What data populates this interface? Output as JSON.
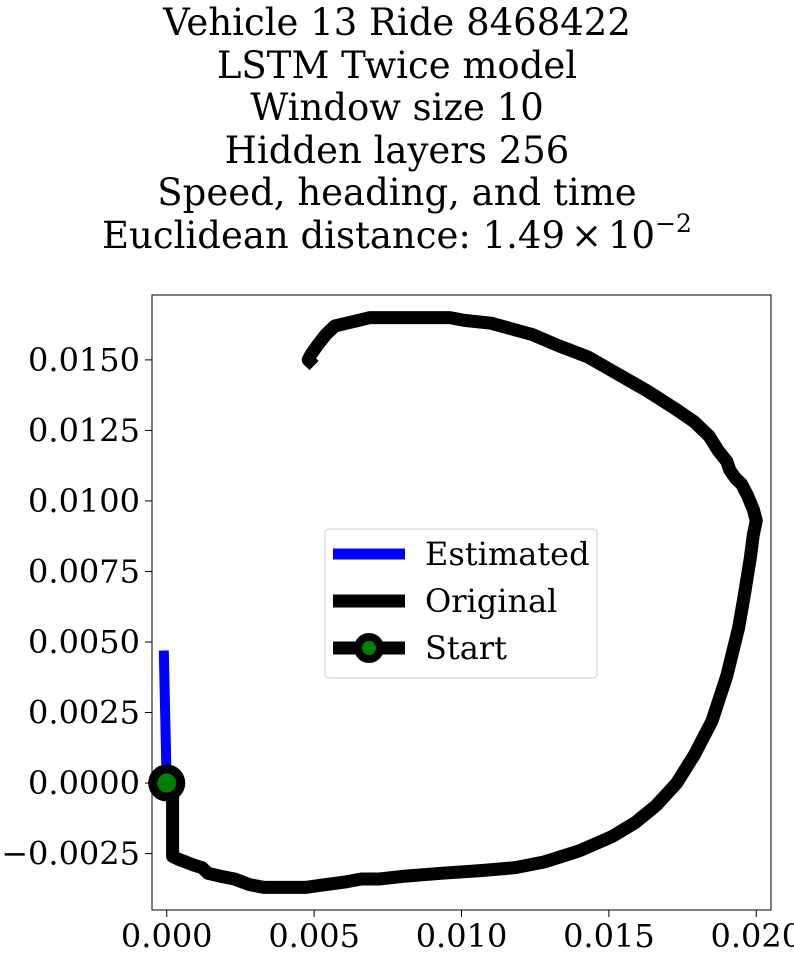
{
  "title_lines": [
    "Vehicle 13 Ride 8468422",
    "LSTM Twice model",
    "Window size 10",
    "Hidden layers 256",
    "Speed, heading, and time"
  ],
  "title_distance_prefix": "Euclidean distance: 1.49",
  "title_distance_times": "×",
  "title_distance_base": "10",
  "title_distance_exponent": "−2",
  "chart_data": {
    "type": "line",
    "xlim": [
      -0.0005,
      0.0205
    ],
    "ylim": [
      -0.0045,
      0.0173
    ],
    "xticks": [
      0.0,
      0.005,
      0.01,
      0.015,
      0.02
    ],
    "xtick_labels": [
      "0.000",
      "0.005",
      "0.010",
      "0.015",
      "0.020"
    ],
    "yticks": [
      -0.0025,
      0.0,
      0.0025,
      0.005,
      0.0075,
      0.01,
      0.0125,
      0.015
    ],
    "ytick_labels": [
      "−0.0025",
      "0.0000",
      "0.0025",
      "0.0050",
      "0.0075",
      "0.0100",
      "0.0125",
      "0.0150"
    ],
    "grid": false,
    "legend_position": "center",
    "series": [
      {
        "name": "Estimated",
        "color": "#0000ff",
        "x": [
          0.0,
          -0.0001
        ],
        "y": [
          0.0,
          0.0047
        ]
      },
      {
        "name": "Original",
        "color": "#000000",
        "x": [
          0.0,
          0.0002,
          0.0002,
          0.0004,
          0.0009,
          0.0012,
          0.0014,
          0.0018,
          0.0023,
          0.0028,
          0.0033,
          0.004,
          0.0047,
          0.0054,
          0.0061,
          0.0066,
          0.0072,
          0.0081,
          0.0093,
          0.0107,
          0.0118,
          0.0128,
          0.014,
          0.0151,
          0.0159,
          0.0166,
          0.0173,
          0.0179,
          0.0185,
          0.019,
          0.0194,
          0.0196,
          0.0198,
          0.0199,
          0.02,
          0.0199,
          0.0197,
          0.0196,
          0.0195,
          0.0193,
          0.0191,
          0.019,
          0.0187,
          0.0184,
          0.0179,
          0.0172,
          0.0163,
          0.0153,
          0.0143,
          0.0133,
          0.0124,
          0.0117,
          0.011,
          0.0101,
          0.0096,
          0.0092,
          0.0087,
          0.008,
          0.0076,
          0.0074,
          0.0071,
          0.0069,
          0.0065,
          0.0061,
          0.0057,
          0.0054,
          0.0051,
          0.0049,
          0.0048,
          0.0049,
          0.005
        ],
        "y": [
          0.0,
          -0.0003,
          -0.0026,
          -0.0027,
          -0.0029,
          -0.003,
          -0.0032,
          -0.0033,
          -0.0034,
          -0.0036,
          -0.0037,
          -0.0037,
          -0.0037,
          -0.0036,
          -0.0035,
          -0.0034,
          -0.0034,
          -0.0033,
          -0.0032,
          -0.0031,
          -0.003,
          -0.0028,
          -0.0024,
          -0.0019,
          -0.0014,
          -0.0008,
          0.0,
          0.001,
          0.0022,
          0.0038,
          0.0055,
          0.0067,
          0.008,
          0.0088,
          0.0093,
          0.0097,
          0.0102,
          0.0104,
          0.0106,
          0.0108,
          0.0111,
          0.0114,
          0.0118,
          0.0123,
          0.0128,
          0.0133,
          0.0139,
          0.0145,
          0.0151,
          0.0155,
          0.0159,
          0.0161,
          0.0163,
          0.0164,
          0.0165,
          0.0165,
          0.0165,
          0.0165,
          0.0165,
          0.0165,
          0.0165,
          0.0165,
          0.0164,
          0.0163,
          0.0162,
          0.0159,
          0.0155,
          0.0152,
          0.015,
          0.0149,
          0.0148
        ]
      }
    ],
    "start_marker": {
      "name": "Start",
      "x": 0.0,
      "y": 0.0,
      "face_color": "#008000",
      "edge_color": "#000000"
    }
  }
}
